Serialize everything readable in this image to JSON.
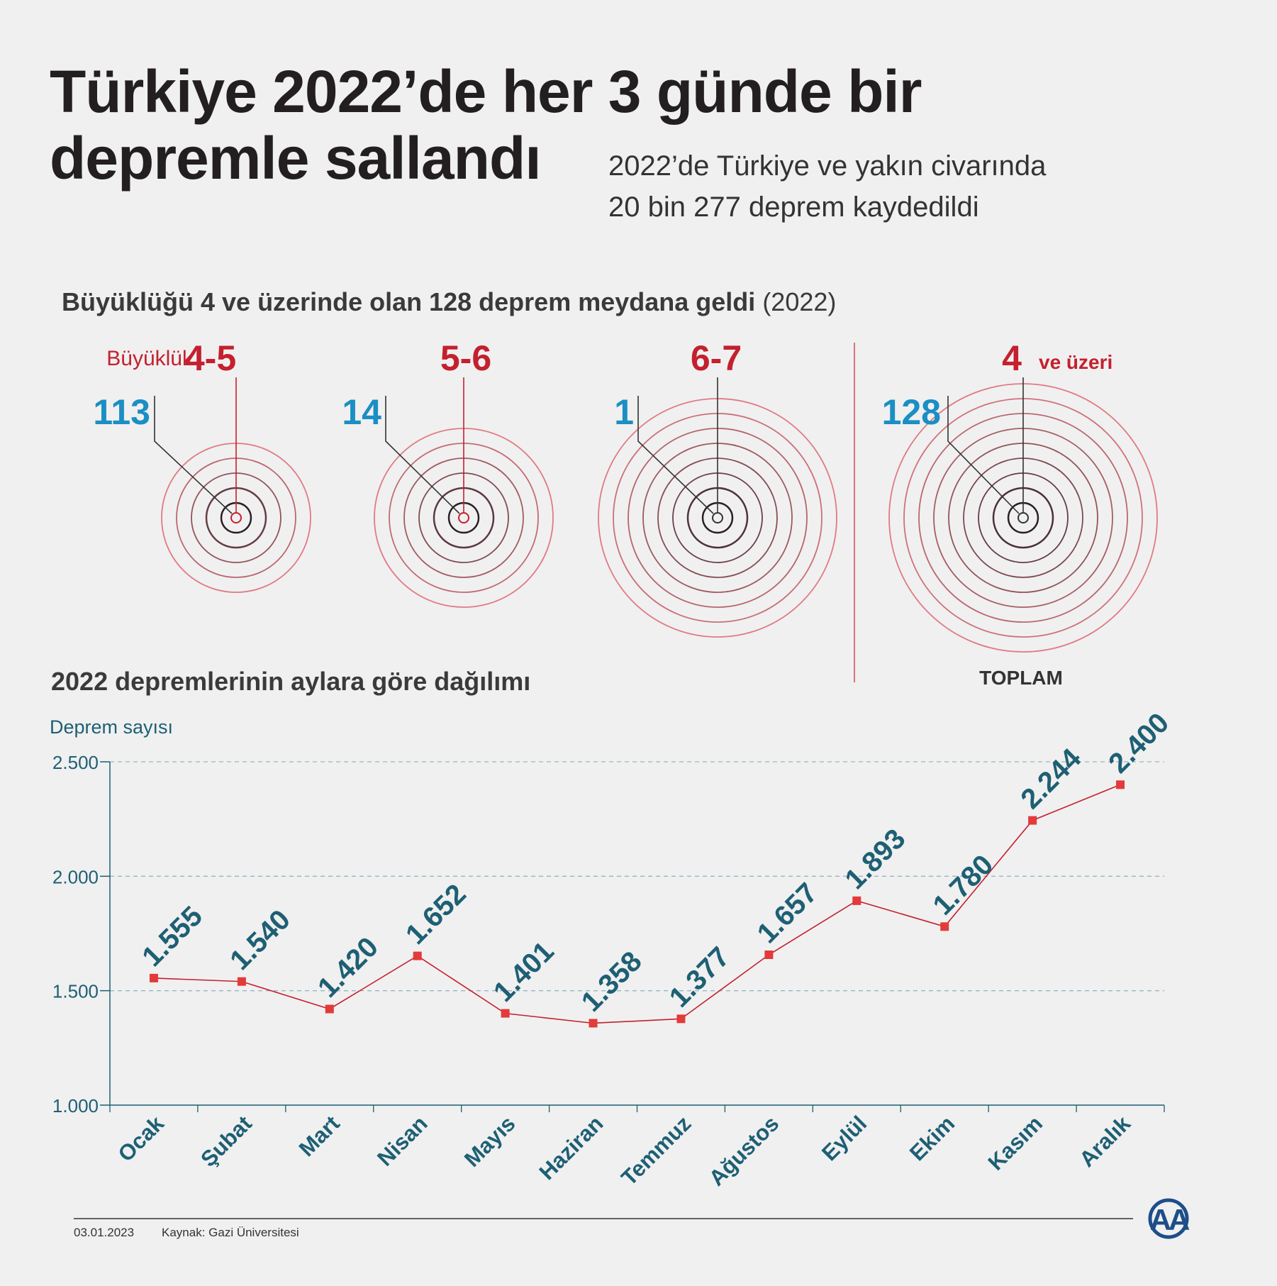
{
  "header": {
    "title_line1": "Türkiye 2022’de her 3 günde bir",
    "title_line2": "depremle sallandı",
    "subtitle_line1": "2022’de Türkiye ve yakın civarında",
    "subtitle_line2": "20 bin 277 deprem kaydedildi"
  },
  "magnitude_section": {
    "heading": "Büyüklüğü 4 ve üzerinde olan 128 deprem meydana geldi",
    "heading_year": "(2022)",
    "magnitude_word": "Büyüklük",
    "groups": [
      {
        "range": "4-5",
        "count": "113",
        "rings": 5
      },
      {
        "range": "5-6",
        "count": "14",
        "rings": 6
      },
      {
        "range": "6-7",
        "count": "1",
        "rings": 8
      }
    ],
    "total": {
      "range": "4",
      "range_suffix": "ve üzeri",
      "count": "128",
      "label": "TOPLAM",
      "rings": 9
    },
    "colors": {
      "count": "#1a8fc4",
      "range": "#c4202e",
      "ring_dark": "#2a1f24",
      "ring_light": "#e07a84"
    }
  },
  "monthly_section": {
    "heading": "2022 depremlerinin aylara göre dağılımı"
  },
  "chart_data": {
    "type": "line",
    "title": "2022 depremlerinin aylara göre dağılımı",
    "ylabel": "Deprem sayısı",
    "xlabel": "",
    "categories": [
      "Ocak",
      "Şubat",
      "Mart",
      "Nisan",
      "Mayıs",
      "Haziran",
      "Temmuz",
      "Ağustos",
      "Eylül",
      "Ekim",
      "Kasım",
      "Aralık"
    ],
    "values": [
      1555,
      1540,
      1420,
      1652,
      1401,
      1358,
      1377,
      1657,
      1893,
      1780,
      2244,
      2400
    ],
    "value_labels": [
      "1.555",
      "1.540",
      "1.420",
      "1.652",
      "1.401",
      "1.358",
      "1.377",
      "1.657",
      "1.893",
      "1.780",
      "2.244",
      "2.400"
    ],
    "yticks": [
      1000,
      1500,
      2000,
      2500
    ],
    "ytick_labels": [
      "1.000",
      "1.500",
      "2.000",
      "2.500"
    ],
    "ylim": [
      1000,
      2500
    ],
    "grid": true,
    "colors": {
      "line": "#c4202e",
      "marker": "#e33a3a",
      "label": "#1e5f74",
      "grid": "#9ab6c4"
    }
  },
  "footer": {
    "date": "03.01.2023",
    "source": "Kaynak: Gazi Üniversitesi",
    "logo_text": "AA"
  }
}
